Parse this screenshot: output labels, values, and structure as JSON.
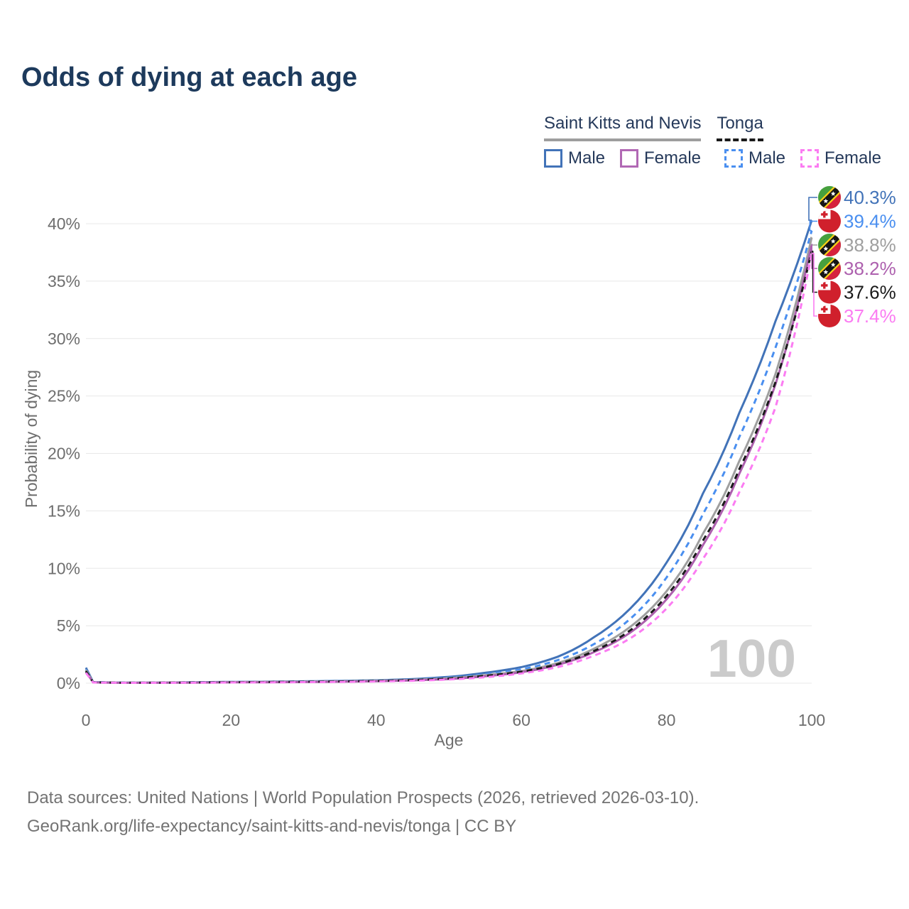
{
  "title": "Odds of dying at each age",
  "legend": {
    "groups": [
      {
        "name": "Saint Kitts and Nevis",
        "line_style": "solid",
        "underline_color": "#9e9e9e",
        "items": [
          {
            "label": "Male",
            "color": "#4273b8"
          },
          {
            "label": "Female",
            "color": "#b168b4"
          }
        ]
      },
      {
        "name": "Tonga",
        "line_style": "dashed",
        "underline_color": "#1a1a1a",
        "items": [
          {
            "label": "Male",
            "color": "#4a8ff0"
          },
          {
            "label": "Female",
            "color": "#fb7cf2"
          }
        ]
      }
    ]
  },
  "chart_data": {
    "type": "line",
    "title": "Odds of dying at each age",
    "xlabel": "Age",
    "ylabel": "Probability of dying",
    "xlim": [
      0,
      100
    ],
    "ylim": [
      0,
      43
    ],
    "grid": true,
    "x_ticks": [
      0,
      20,
      40,
      60,
      80,
      100
    ],
    "y_ticks": [
      0,
      5,
      10,
      15,
      20,
      25,
      30,
      35,
      40
    ],
    "y_tick_suffix": "%",
    "watermark": "100",
    "x": [
      0,
      1,
      5,
      10,
      15,
      20,
      25,
      30,
      35,
      40,
      45,
      50,
      55,
      60,
      65,
      70,
      75,
      80,
      85,
      90,
      95,
      100
    ],
    "series": [
      {
        "name": "Saint Kitts and Nevis — Male",
        "country": "Saint Kitts and Nevis",
        "sex": "Male",
        "flag": "skn",
        "color": "#4273b8",
        "dash": "solid",
        "end_label": "40.3%",
        "values": [
          1.35,
          0.09,
          0.05,
          0.05,
          0.08,
          0.11,
          0.13,
          0.16,
          0.2,
          0.25,
          0.36,
          0.55,
          0.9,
          1.4,
          2.3,
          4.0,
          6.5,
          10.5,
          16.5,
          23.5,
          31.5,
          40.3
        ]
      },
      {
        "name": "Tonga — Male",
        "country": "Tonga",
        "sex": "Male",
        "flag": "tonga",
        "color": "#4a8ff0",
        "dash": "dashed",
        "end_label": "39.4%",
        "values": [
          1.2,
          0.08,
          0.05,
          0.05,
          0.07,
          0.1,
          0.12,
          0.15,
          0.18,
          0.23,
          0.32,
          0.47,
          0.77,
          1.2,
          2.0,
          3.4,
          5.6,
          9.2,
          14.7,
          21.4,
          29.2,
          39.4
        ]
      },
      {
        "name": "Saint Kitts and Nevis",
        "country": "Saint Kitts and Nevis",
        "sex": "",
        "flag": "skn",
        "color": "#9f9f9f",
        "dash": "solid",
        "end_label": "38.8%",
        "values": [
          1.15,
          0.08,
          0.04,
          0.05,
          0.06,
          0.09,
          0.11,
          0.13,
          0.16,
          0.21,
          0.29,
          0.43,
          0.7,
          1.05,
          1.75,
          3.0,
          4.9,
          8.0,
          13.0,
          19.3,
          26.9,
          38.8
        ]
      },
      {
        "name": "Saint Kitts and Nevis — Female",
        "country": "Saint Kitts and Nevis",
        "sex": "Female",
        "flag": "skn",
        "color": "#ad60ae",
        "dash": "solid",
        "end_label": "38.2%",
        "values": [
          1.0,
          0.07,
          0.03,
          0.04,
          0.05,
          0.07,
          0.08,
          0.1,
          0.13,
          0.17,
          0.24,
          0.36,
          0.6,
          0.95,
          1.6,
          2.7,
          4.4,
          7.3,
          12.0,
          18.2,
          26.0,
          38.2
        ]
      },
      {
        "name": "Tonga",
        "country": "Tonga",
        "sex": "",
        "flag": "tonga",
        "color": "#1a1a1a",
        "dash": "dashed",
        "end_label": "37.6%",
        "values": [
          1.05,
          0.07,
          0.04,
          0.04,
          0.06,
          0.08,
          0.1,
          0.12,
          0.15,
          0.19,
          0.27,
          0.4,
          0.64,
          1.0,
          1.65,
          2.8,
          4.6,
          7.6,
          12.4,
          18.6,
          26.2,
          37.6
        ]
      },
      {
        "name": "Tonga — Female",
        "country": "Tonga",
        "sex": "Female",
        "flag": "tonga",
        "color": "#fb7cf2",
        "dash": "dashed",
        "end_label": "37.4%",
        "values": [
          0.9,
          0.06,
          0.03,
          0.03,
          0.04,
          0.06,
          0.07,
          0.09,
          0.11,
          0.15,
          0.21,
          0.32,
          0.52,
          0.85,
          1.4,
          2.4,
          3.9,
          6.5,
          10.8,
          16.6,
          24.0,
          37.4
        ]
      }
    ],
    "flag_colors": {
      "skn_green": "#46a03e",
      "skn_red": "#d6213d",
      "skn_yellow": "#f7d117",
      "skn_black": "#151515",
      "tonga_red": "#d0202c",
      "tonga_white": "#ffffff"
    }
  },
  "axis_style": {
    "grid_color": "#e8e8e8",
    "tick_color": "#6e6e6e",
    "watermark_color": "#cbcbcb"
  },
  "footer": {
    "line1": "Data sources: United Nations | World Population Prospects (2026, retrieved 2026-03-10).",
    "line2": "GeoRank.org/life-expectancy/saint-kitts-and-nevis/tonga | CC BY"
  }
}
